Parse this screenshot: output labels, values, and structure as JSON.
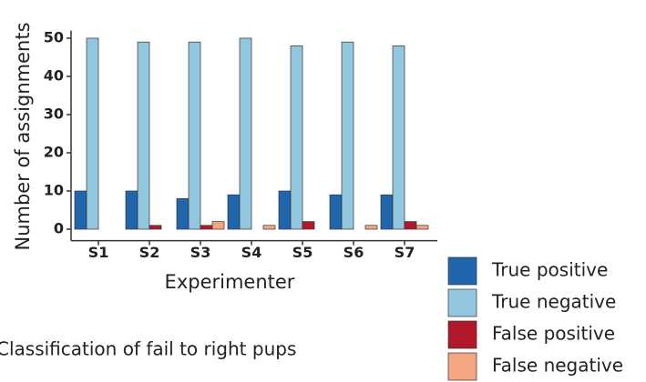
{
  "chart_data": {
    "type": "bar",
    "y_label": "Number of assignments",
    "x_label": "Experimenter",
    "categories": [
      "S1",
      "S2",
      "S3",
      "S4",
      "S5",
      "S6",
      "S7"
    ],
    "series": [
      {
        "name": "True positive",
        "color": "#2166ac",
        "values": [
          10,
          10,
          8,
          9,
          10,
          9,
          9
        ]
      },
      {
        "name": "True negative",
        "color": "#92c5de",
        "values": [
          50,
          49,
          49,
          50,
          48,
          49,
          48
        ]
      },
      {
        "name": "False positive",
        "color": "#b2182b",
        "values": [
          0,
          1,
          1,
          0,
          2,
          0,
          2
        ]
      },
      {
        "name": "False negative",
        "color": "#f4a582",
        "values": [
          0,
          0,
          2,
          1,
          0,
          1,
          1
        ]
      }
    ],
    "ylim": [
      -3,
      52
    ],
    "yticks": [
      0,
      10,
      20,
      30,
      40,
      50
    ],
    "grid": false,
    "legend": "bottom-right",
    "annotation": "Classification of fail to right pups"
  }
}
